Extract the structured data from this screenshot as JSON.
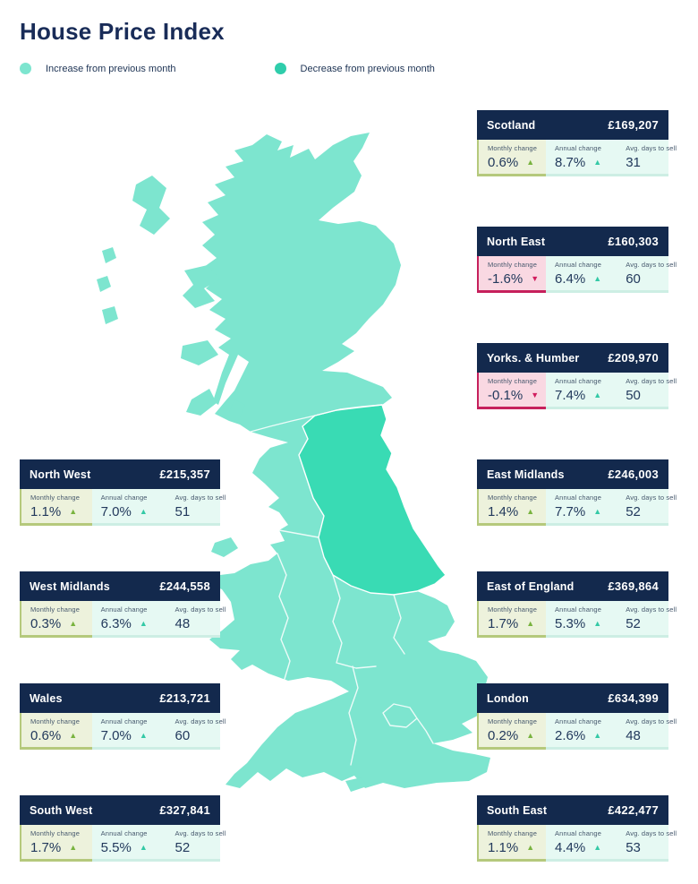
{
  "title": "House Price Index",
  "legend": {
    "increase": "Increase from previous month",
    "decrease": "Decrease from previous month"
  },
  "labels": {
    "monthly": "Monthly change",
    "annual": "Annual change",
    "days": "Avg. days to sell"
  },
  "icons": {
    "up": "▲",
    "down": "▼"
  },
  "colors": {
    "navy": "#13294d",
    "navy_title": "#192c58",
    "map_light": "#7de5cf",
    "map_dark": "#39dbb4",
    "dot_dark": "#2fcdab",
    "mint": "#e6f9f3",
    "mint_border": "#cdeee4",
    "green_bg": "#edf2dc",
    "green_border": "#b5c97c",
    "green_arrow": "#79b33f",
    "pink_bg": "#f9d8e2",
    "pink_border": "#c6205c",
    "pink_arrow": "#d11d5e",
    "teal_arrow": "#34c9a6"
  },
  "regions": [
    {
      "name": "Scotland",
      "price": "£169,207",
      "monthly": "0.6%",
      "monthly_dir": "up",
      "annual": "8.7%",
      "annual_dir": "up",
      "days": "31",
      "side": "right"
    },
    {
      "name": "North East",
      "price": "£160,303",
      "monthly": "-1.6%",
      "monthly_dir": "down",
      "annual": "6.4%",
      "annual_dir": "up",
      "days": "60",
      "side": "right"
    },
    {
      "name": "Yorks. & Humber",
      "price": "£209,970",
      "monthly": "-0.1%",
      "monthly_dir": "down",
      "annual": "7.4%",
      "annual_dir": "up",
      "days": "50",
      "side": "right"
    },
    {
      "name": "North West",
      "price": "£215,357",
      "monthly": "1.1%",
      "monthly_dir": "up",
      "annual": "7.0%",
      "annual_dir": "up",
      "days": "51",
      "side": "left"
    },
    {
      "name": "East Midlands",
      "price": "£246,003",
      "monthly": "1.4%",
      "monthly_dir": "up",
      "annual": "7.7%",
      "annual_dir": "up",
      "days": "52",
      "side": "right"
    },
    {
      "name": "West Midlands",
      "price": "£244,558",
      "monthly": "0.3%",
      "monthly_dir": "up",
      "annual": "6.3%",
      "annual_dir": "up",
      "days": "48",
      "side": "left"
    },
    {
      "name": "East of England",
      "price": "£369,864",
      "monthly": "1.7%",
      "monthly_dir": "up",
      "annual": "5.3%",
      "annual_dir": "up",
      "days": "52",
      "side": "right"
    },
    {
      "name": "Wales",
      "price": "£213,721",
      "monthly": "0.6%",
      "monthly_dir": "up",
      "annual": "7.0%",
      "annual_dir": "up",
      "days": "60",
      "side": "left"
    },
    {
      "name": "London",
      "price": "£634,399",
      "monthly": "0.2%",
      "monthly_dir": "up",
      "annual": "2.6%",
      "annual_dir": "up",
      "days": "48",
      "side": "right"
    },
    {
      "name": "South West",
      "price": "£327,841",
      "monthly": "1.7%",
      "monthly_dir": "up",
      "annual": "5.5%",
      "annual_dir": "up",
      "days": "52",
      "side": "left"
    },
    {
      "name": "South East",
      "price": "£422,477",
      "monthly": "1.1%",
      "monthly_dir": "up",
      "annual": "4.4%",
      "annual_dir": "up",
      "days": "53",
      "side": "right"
    }
  ]
}
